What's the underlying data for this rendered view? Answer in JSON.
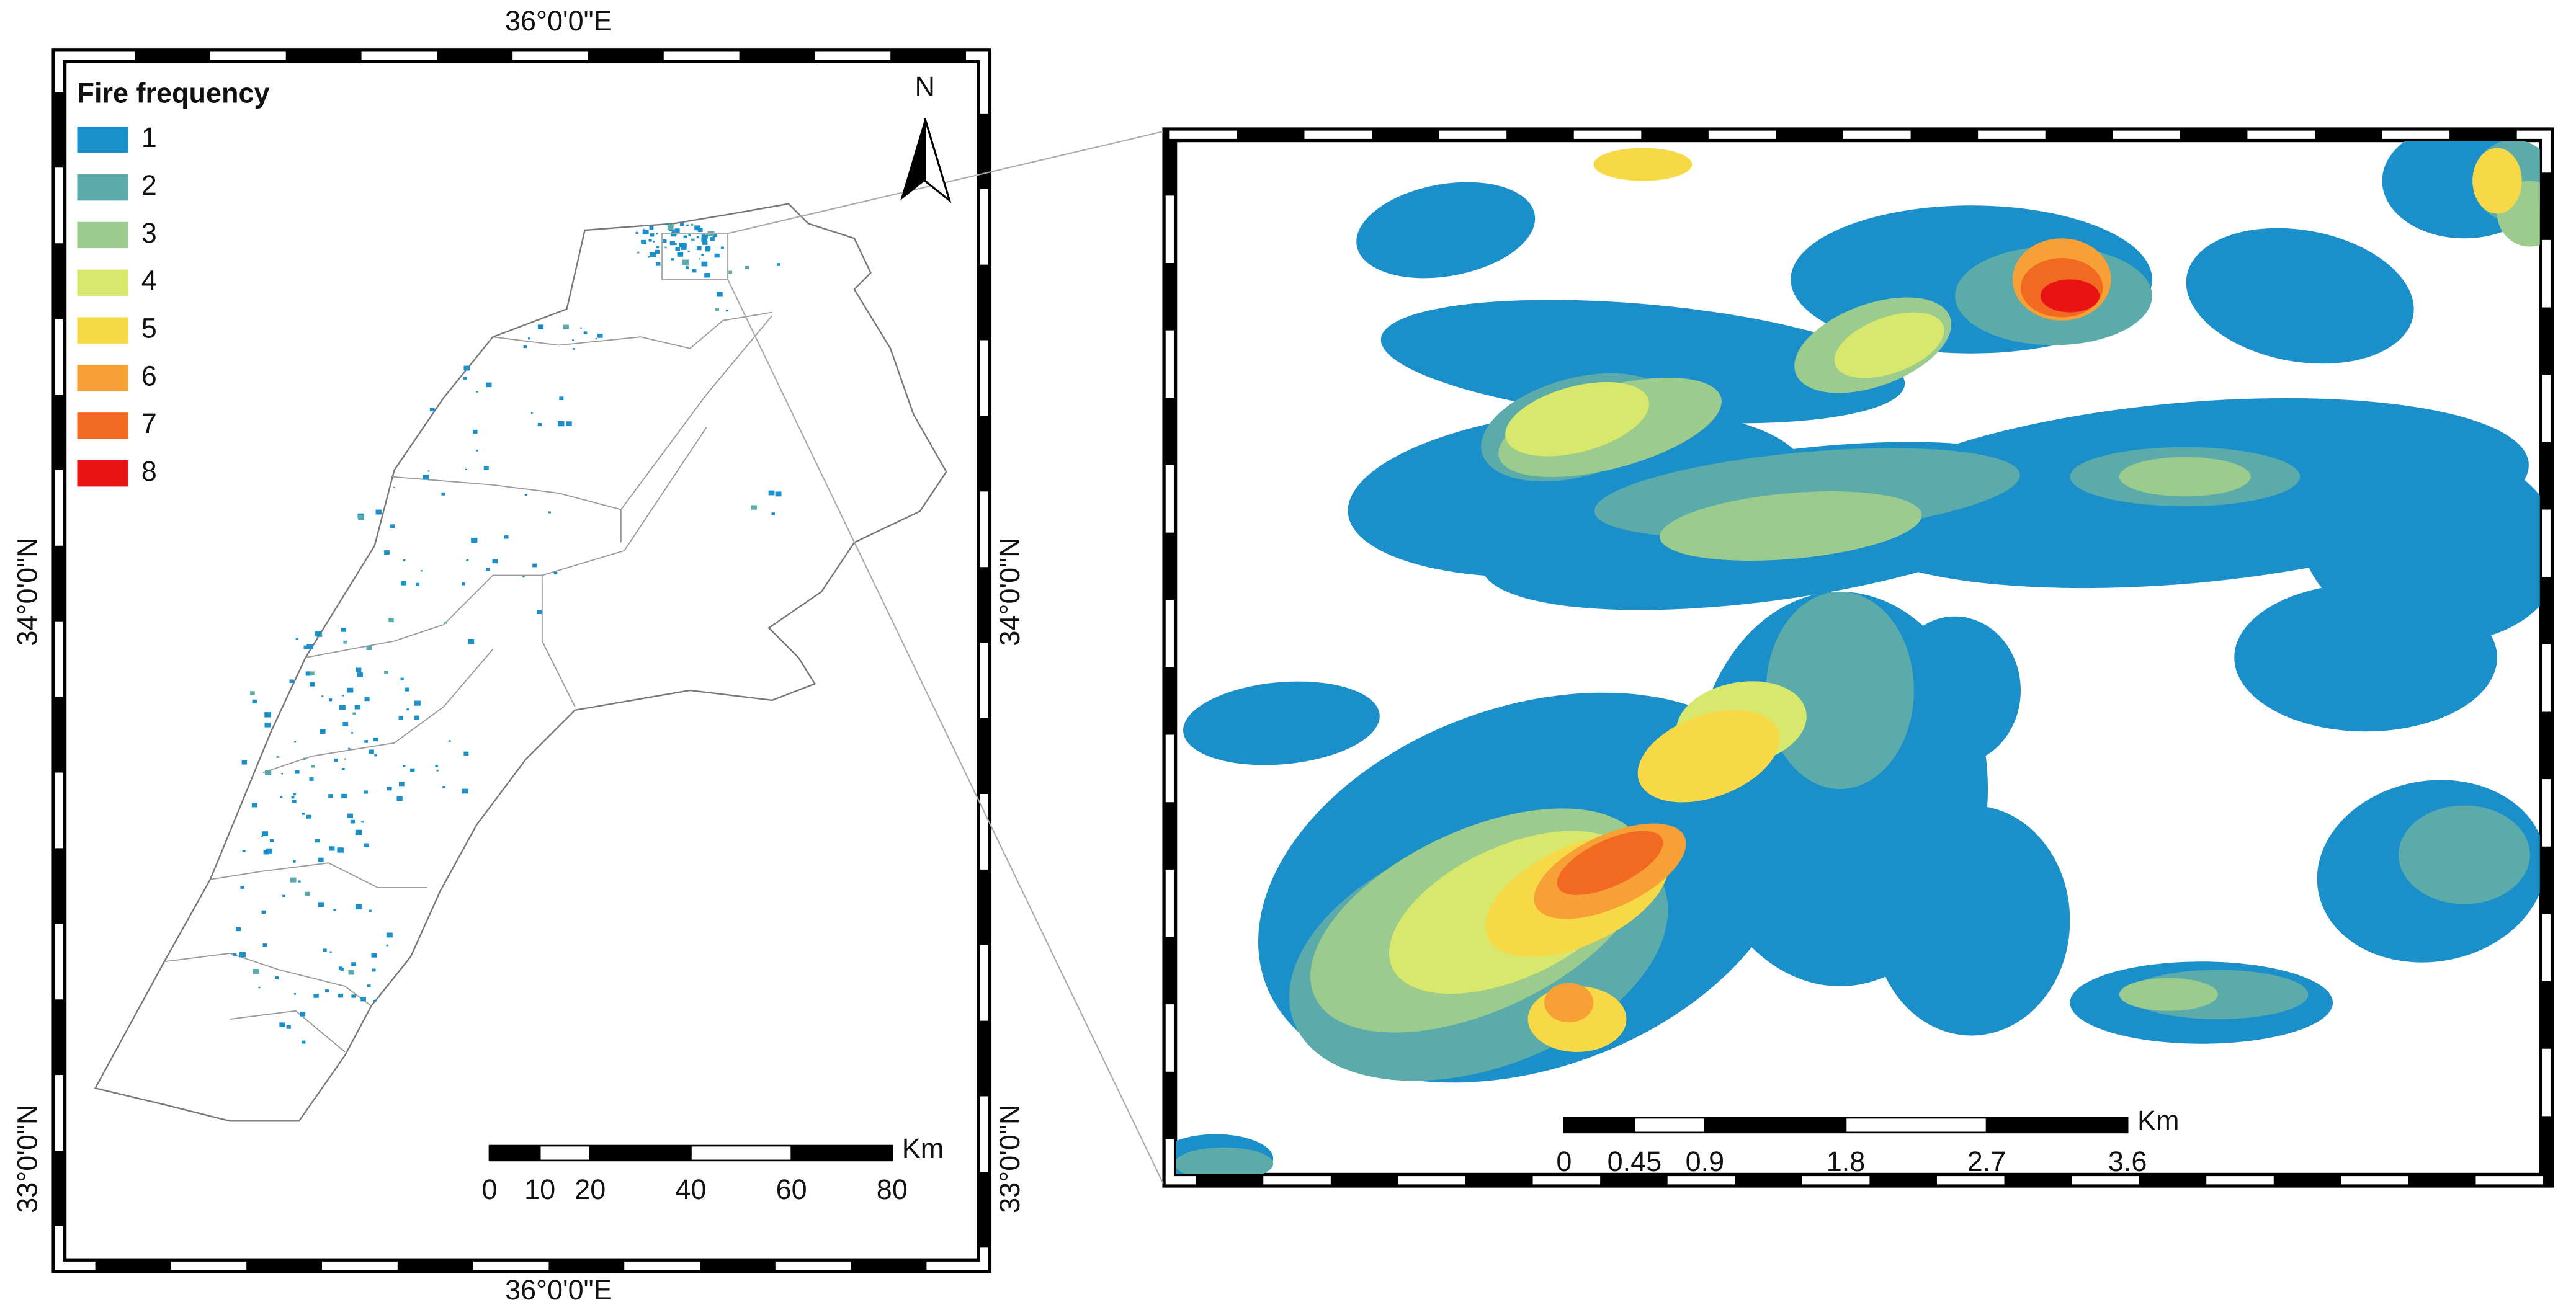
{
  "main_map": {
    "legend": {
      "title": "Fire frequency",
      "items": [
        {
          "label": "1",
          "color": "#1a8fc9"
        },
        {
          "label": "2",
          "color": "#5aabaa"
        },
        {
          "label": "3",
          "color": "#9ccb8e"
        },
        {
          "label": "4",
          "color": "#d7e86c"
        },
        {
          "label": "5",
          "color": "#f7d948"
        },
        {
          "label": "6",
          "color": "#f7a035"
        },
        {
          "label": "7",
          "color": "#f26a22"
        },
        {
          "label": "8",
          "color": "#e81313"
        }
      ]
    },
    "north_label": "N",
    "top_label": "36°0'0\"E",
    "bottom_label": "36°0'0\"E",
    "left_labels": [
      "34°0'0\"N",
      "33°0'0\"N"
    ],
    "right_labels": [
      "34°0'0\"N",
      "33°0'0\"N"
    ],
    "scale_bar": {
      "unit": "Km",
      "ticks": [
        0,
        10,
        20,
        40,
        60,
        80
      ]
    }
  },
  "inset_map": {
    "scale_bar": {
      "unit": "Km",
      "ticks": [
        0,
        0.45,
        0.9,
        1.8,
        2.7,
        3.6
      ]
    }
  }
}
